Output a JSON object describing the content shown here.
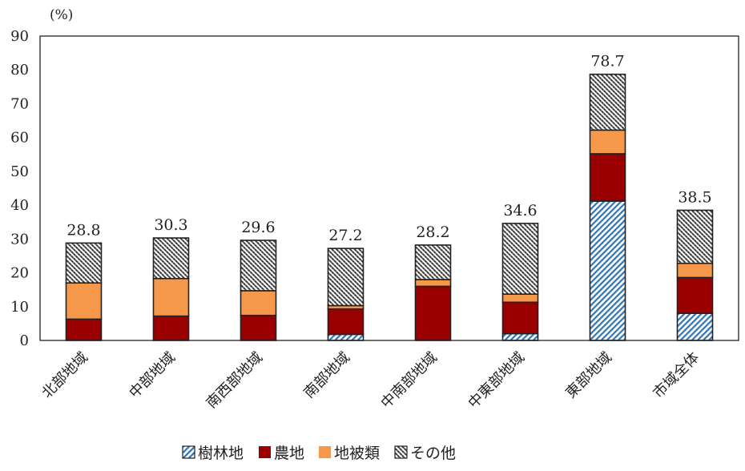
{
  "chart_data": {
    "type": "bar",
    "stacked": true,
    "unit_label": "(%)",
    "ylim": [
      0,
      90
    ],
    "yticks": [
      0,
      10,
      20,
      30,
      40,
      50,
      60,
      70,
      80,
      90
    ],
    "grid": false,
    "legend_position": "bottom",
    "categories": [
      "北部地域",
      "中部地域",
      "南西部地域",
      "南部地域",
      "中南部地域",
      "中東部地域",
      "東部地域",
      "市域全体"
    ],
    "series": [
      {
        "name": "樹林地",
        "color": "#2e75b6",
        "pattern": "diagonal-hatch",
        "values": [
          0,
          0,
          0,
          1.8,
          0,
          2.0,
          41.2,
          8.0
        ]
      },
      {
        "name": "農地",
        "color": "#9b0000",
        "pattern": "solid",
        "values": [
          6.3,
          7.2,
          7.4,
          7.5,
          16.0,
          9.3,
          14.0,
          10.6
        ]
      },
      {
        "name": "地被類",
        "color": "#f5984a",
        "pattern": "solid",
        "values": [
          10.7,
          11.1,
          7.3,
          1.0,
          2.0,
          2.4,
          7.0,
          4.2
        ]
      },
      {
        "name": "その他",
        "color": "#333333",
        "pattern": "checker-hatch",
        "values": [
          11.8,
          12.0,
          14.9,
          16.9,
          10.2,
          20.9,
          16.5,
          15.7
        ]
      }
    ],
    "totals": [
      "28.8",
      "30.3",
      "29.6",
      "27.2",
      "28.2",
      "34.6",
      "78.7",
      "38.5"
    ]
  }
}
